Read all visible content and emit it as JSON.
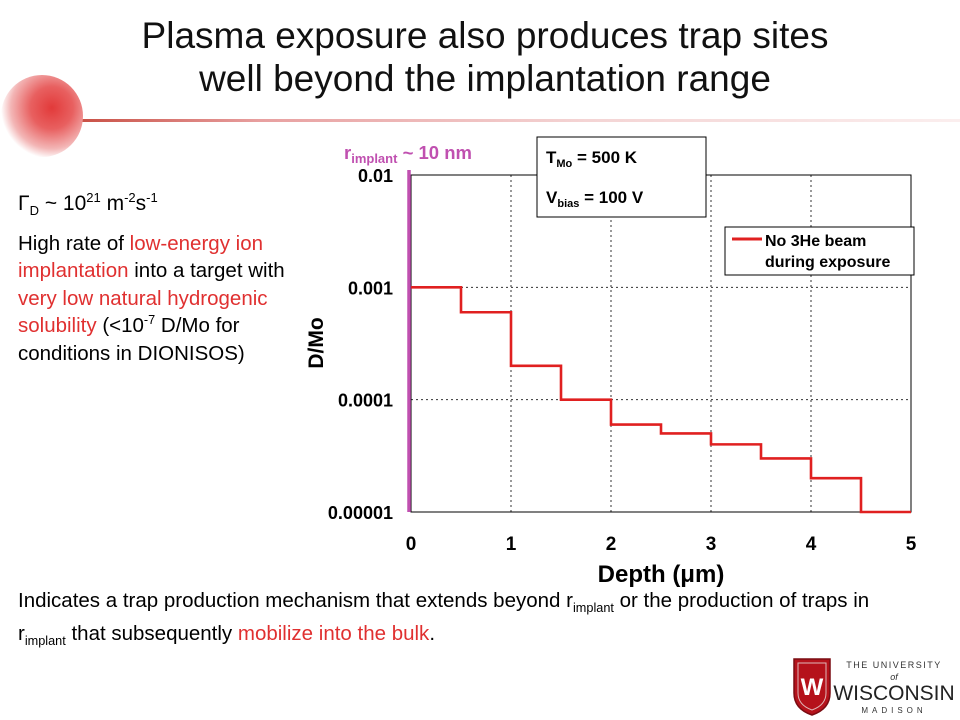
{
  "title": {
    "line1": "Plasma exposure also produces trap sites",
    "line2": "well beyond the implantation range"
  },
  "flux": {
    "symbol": "Γ",
    "sub": "D",
    "tilde": " ~ 10",
    "exp": "21",
    "unit_m": " m",
    "m_exp": "-2",
    "unit_s": "s",
    "s_exp": "-1"
  },
  "description": {
    "p1": "High rate of ",
    "p2": "low-energy ion implantation",
    "p3": " into a target with ",
    "p4": "very low natural hydrogenic solubility",
    "p5": " (<10",
    "p5_exp": "-7",
    "p6": " D/Mo for conditions in DIONISOS)"
  },
  "bottom": {
    "p1": "Indicates a trap production mechanism that extends beyond r",
    "sub1": "implant",
    "p2": " or the production of traps in r",
    "sub2": "implant",
    "p3": " that subsequently ",
    "p4": "mobilize into the bulk",
    "p5": "."
  },
  "colors": {
    "accent_red": "#e03030",
    "series_red": "#e02020",
    "implant_magenta": "#c050b0"
  },
  "logo": {
    "line1": "THE UNIVERSITY",
    "line2": "of",
    "line3": "WISCONSIN",
    "line4": "MADISON",
    "shield_letter": "W"
  },
  "chart_data": {
    "type": "line",
    "xlabel": "Depth (μm)",
    "ylabel": "D/Mo",
    "xlim": [
      0,
      5
    ],
    "ylim": [
      1e-05,
      0.01
    ],
    "yscale": "log",
    "grid": true,
    "x_ticks": [
      "0",
      "1",
      "2",
      "3",
      "4",
      "5"
    ],
    "y_ticks": [
      {
        "label": "0.01",
        "value": 0.01
      },
      {
        "label": "0.001",
        "value": 0.001
      },
      {
        "label": "0.0001",
        "value": 0.0001
      },
      {
        "label": "0.00001",
        "value": 1e-05
      }
    ],
    "legend": {
      "placement": "top-right",
      "line1": "No 3He beam",
      "line2": "during exposure"
    },
    "series": [
      {
        "steps": [
          {
            "x0": 0,
            "x1": 0.5,
            "y": 0.001
          },
          {
            "x0": 0.5,
            "x1": 1.0,
            "y": 0.0006
          },
          {
            "x0": 1.0,
            "x1": 1.5,
            "y": 0.0002
          },
          {
            "x0": 1.5,
            "x1": 2.0,
            "y": 0.0001
          },
          {
            "x0": 2.0,
            "x1": 2.5,
            "y": 6e-05
          },
          {
            "x0": 2.5,
            "x1": 3.0,
            "y": 5e-05
          },
          {
            "x0": 3.0,
            "x1": 3.5,
            "y": 4e-05
          },
          {
            "x0": 3.5,
            "x1": 4.0,
            "y": 3e-05
          },
          {
            "x0": 4.0,
            "x1": 4.5,
            "y": 2e-05
          },
          {
            "x0": 4.5,
            "x1": 5.0,
            "y": 1e-05
          }
        ]
      }
    ],
    "implant_marker": {
      "x": 0.0,
      "label_r": "r",
      "label_sub": "implant",
      "label_rest": " ~ 10 nm"
    },
    "conditions": {
      "t_label": "T",
      "t_sub": "Mo",
      "t_value": " = 500 K",
      "v_label": "V",
      "v_sub": "bias",
      "v_value": " = 100 V"
    }
  }
}
